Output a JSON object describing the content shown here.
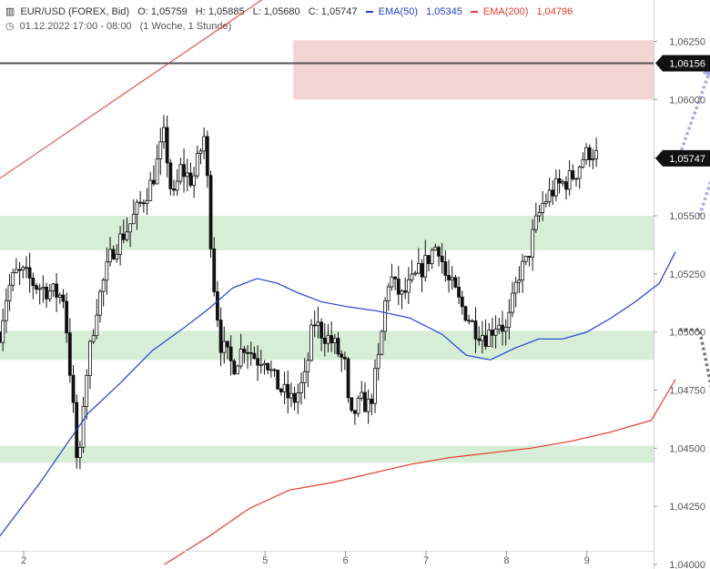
{
  "header": {
    "symbol": "EUR/USD (FOREX, Bid)",
    "open": "O: 1,05759",
    "high": "H: 1,05885",
    "low": "L: 1,05680",
    "close": "C: 1,05747",
    "ema50_label": "EMA(50)",
    "ema50_value": "1,05345",
    "ema200_label": "EMA(200)",
    "ema200_value": "1,04796",
    "period": "01.12.2022 17:00 - 08:00",
    "interval": "(1 Woche, 1 Stunde)"
  },
  "colors": {
    "up": "#ffffff",
    "down": "#111111",
    "wick": "#111111",
    "ema50": "#1f3fd6",
    "ema200": "#e8392a",
    "green_zone": "#d6edd6",
    "red_zone": "#f3d6d4",
    "arrow_up": "#a9a6ea",
    "arrow_down": "#777777",
    "level_line": "#555555",
    "tag_bg": "#111111"
  },
  "chart_data": {
    "type": "candlestick",
    "ylim": [
      1.04,
      1.0635
    ],
    "yticks": [
      "1,04000",
      "1,04250",
      "1,04500",
      "1,04750",
      "1,05000",
      "1,05250",
      "1,05500",
      "1,05750",
      "1,06000",
      "1,06250"
    ],
    "xticks": [
      "2",
      "5",
      "6",
      "7",
      "8",
      "9"
    ],
    "price_tags": [
      {
        "label": "1,06156",
        "value": 1.06156
      },
      {
        "label": "1,05747",
        "value": 1.05747
      }
    ],
    "horizontal_line": 1.06156,
    "zones": [
      {
        "kind": "resistance",
        "from_day": 5.35,
        "to_day": 10.7,
        "low": 1.06,
        "high": 1.06255
      },
      {
        "kind": "support",
        "from_day": 1.7,
        "to_day": 10.2,
        "low": 1.05352,
        "high": 1.055
      },
      {
        "kind": "support",
        "from_day": 1.7,
        "to_day": 10.3,
        "low": 1.0488,
        "high": 1.05005
      },
      {
        "kind": "support",
        "from_day": 1.7,
        "to_day": 10.65,
        "low": 1.04437,
        "high": 1.0451
      }
    ],
    "trendline": {
      "from": {
        "day": 1.7,
        "price": 1.0566
      },
      "to": {
        "day": 5.05,
        "price": 1.0645
      }
    },
    "ema50": [
      [
        1.7,
        1.0412
      ],
      [
        2.2,
        1.0435
      ],
      [
        2.8,
        1.0465
      ],
      [
        3.2,
        1.0478
      ],
      [
        3.6,
        1.0492
      ],
      [
        4.0,
        1.0502
      ],
      [
        4.3,
        1.051
      ],
      [
        4.6,
        1.0519
      ],
      [
        4.9,
        1.0523
      ],
      [
        5.15,
        1.0521
      ],
      [
        5.4,
        1.0517
      ],
      [
        5.7,
        1.0513
      ],
      [
        6.0,
        1.0511
      ],
      [
        6.4,
        1.0509
      ],
      [
        6.8,
        1.0506
      ],
      [
        7.2,
        1.0499
      ],
      [
        7.5,
        1.049
      ],
      [
        7.8,
        1.0488
      ],
      [
        8.1,
        1.0493
      ],
      [
        8.4,
        1.0497
      ],
      [
        8.7,
        1.0497
      ],
      [
        9.0,
        1.05
      ],
      [
        9.3,
        1.0506
      ],
      [
        9.6,
        1.0513
      ],
      [
        9.9,
        1.0521
      ],
      [
        10.1,
        1.05345
      ]
    ],
    "ema200": [
      [
        3.75,
        1.04
      ],
      [
        4.3,
        1.0412
      ],
      [
        4.8,
        1.0424
      ],
      [
        5.3,
        1.0432
      ],
      [
        5.8,
        1.0435
      ],
      [
        6.3,
        1.0439
      ],
      [
        6.8,
        1.0443
      ],
      [
        7.3,
        1.0446
      ],
      [
        7.8,
        1.0448
      ],
      [
        8.3,
        1.045
      ],
      [
        8.8,
        1.0453
      ],
      [
        9.3,
        1.0457
      ],
      [
        9.8,
        1.0462
      ],
      [
        10.1,
        1.04796
      ]
    ],
    "arrows": [
      {
        "style": "dotted",
        "color_key": "arrow_up",
        "from": {
          "day": 10.15,
          "price": 1.0576
        },
        "to": {
          "day": 10.55,
          "price": 1.06145
        }
      },
      {
        "style": "dotted",
        "color_key": "arrow_up",
        "from": {
          "day": 10.4,
          "price": 1.055
        },
        "to": {
          "day": 11.0,
          "price": 1.06145
        }
      },
      {
        "style": "dotted",
        "color_key": "arrow_down",
        "from": {
          "day": 10.15,
          "price": 1.0501
        },
        "to": {
          "day": 10.7,
          "price": 1.045
        }
      }
    ],
    "candle_anchors": [
      [
        1.7,
        1.05
      ],
      [
        1.8,
        1.0518
      ],
      [
        1.9,
        1.0525
      ],
      [
        2.0,
        1.0525
      ],
      [
        2.15,
        1.052
      ],
      [
        2.3,
        1.0518
      ],
      [
        2.5,
        1.0515
      ],
      [
        2.62,
        1.0465
      ],
      [
        2.68,
        1.0435
      ],
      [
        2.75,
        1.0475
      ],
      [
        2.9,
        1.051
      ],
      [
        3.1,
        1.0535
      ],
      [
        3.3,
        1.0545
      ],
      [
        3.45,
        1.0555
      ],
      [
        3.6,
        1.0565
      ],
      [
        3.75,
        1.0585
      ],
      [
        3.85,
        1.0555
      ],
      [
        3.95,
        1.057
      ],
      [
        4.1,
        1.0565
      ],
      [
        4.25,
        1.0585
      ],
      [
        4.35,
        1.0525
      ],
      [
        4.45,
        1.0495
      ],
      [
        4.6,
        1.0485
      ],
      [
        4.75,
        1.0495
      ],
      [
        4.9,
        1.0488
      ],
      [
        5.0,
        1.049
      ],
      [
        5.1,
        1.048
      ],
      [
        5.2,
        1.0475
      ],
      [
        5.35,
        1.047
      ],
      [
        5.5,
        1.048
      ],
      [
        5.6,
        1.0505
      ],
      [
        5.7,
        1.05
      ],
      [
        5.85,
        1.0495
      ],
      [
        6.0,
        1.0485
      ],
      [
        6.05,
        1.046
      ],
      [
        6.1,
        1.0465
      ],
      [
        6.2,
        1.047
      ],
      [
        6.3,
        1.0468
      ],
      [
        6.42,
        1.049
      ],
      [
        6.5,
        1.0515
      ],
      [
        6.55,
        1.0525
      ],
      [
        6.6,
        1.052
      ],
      [
        6.7,
        1.0515
      ],
      [
        6.8,
        1.052
      ],
      [
        6.9,
        1.0525
      ],
      [
        7.0,
        1.053
      ],
      [
        7.08,
        1.0535
      ],
      [
        7.15,
        1.0538
      ],
      [
        7.25,
        1.0523
      ],
      [
        7.35,
        1.0518
      ],
      [
        7.42,
        1.0512
      ],
      [
        7.5,
        1.0508
      ],
      [
        7.6,
        1.0502
      ],
      [
        7.75,
        1.0498
      ],
      [
        7.9,
        1.0505
      ],
      [
        8.0,
        1.05
      ],
      [
        8.15,
        1.0525
      ],
      [
        8.25,
        1.053
      ],
      [
        8.35,
        1.0545
      ],
      [
        8.45,
        1.0555
      ],
      [
        8.55,
        1.056
      ],
      [
        8.65,
        1.0563
      ],
      [
        8.75,
        1.0565
      ],
      [
        8.85,
        1.0568
      ],
      [
        8.95,
        1.0575
      ],
      [
        9.05,
        1.0578
      ],
      [
        9.15,
        1.05747
      ]
    ]
  }
}
